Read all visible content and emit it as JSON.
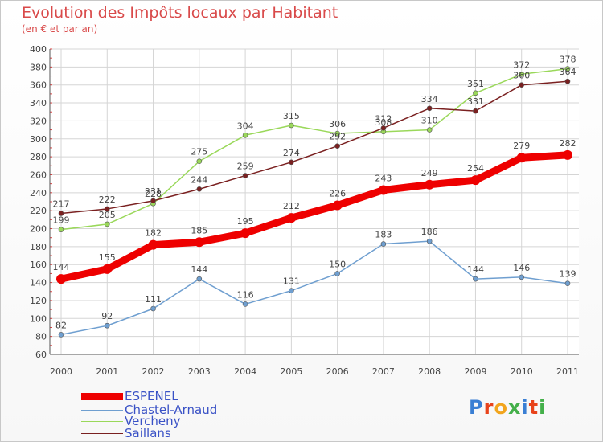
{
  "title": "Evolution des Impôts locaux par Habitant",
  "subtitle": "(en € et par an)",
  "logo": "Proxiti",
  "colors": {
    "title": "#d94a4a",
    "axis": "#555555",
    "grid": "#d5d5d5",
    "legend_text": "#3a52c6"
  },
  "chart_data": {
    "type": "line",
    "x": [
      "2000",
      "2001",
      "2002",
      "2003",
      "2004",
      "2005",
      "2006",
      "2007",
      "2008",
      "2009",
      "2010",
      "2011"
    ],
    "ylim": [
      60,
      400
    ],
    "yticks": [
      60,
      80,
      100,
      120,
      140,
      160,
      180,
      200,
      220,
      240,
      260,
      280,
      300,
      320,
      340,
      360,
      380,
      400
    ],
    "grid": true,
    "legend_position": "bottom-left",
    "series": [
      {
        "name": "ESPENEL",
        "color": "#ee0000",
        "values": [
          144,
          155,
          182,
          185,
          195,
          212,
          226,
          243,
          249,
          254,
          279,
          282
        ]
      },
      {
        "name": "Chastel-Arnaud",
        "color": "#6f9fd0",
        "values": [
          82,
          92,
          111,
          144,
          116,
          131,
          150,
          183,
          186,
          144,
          146,
          139
        ]
      },
      {
        "name": "Vercheny",
        "color": "#9ad85a",
        "values": [
          199,
          205,
          228,
          275,
          304,
          315,
          306,
          308,
          310,
          351,
          372,
          378
        ]
      },
      {
        "name": "Saillans",
        "color": "#7a2020",
        "values": [
          217,
          222,
          231,
          244,
          259,
          274,
          292,
          312,
          334,
          331,
          360,
          364
        ]
      }
    ]
  }
}
